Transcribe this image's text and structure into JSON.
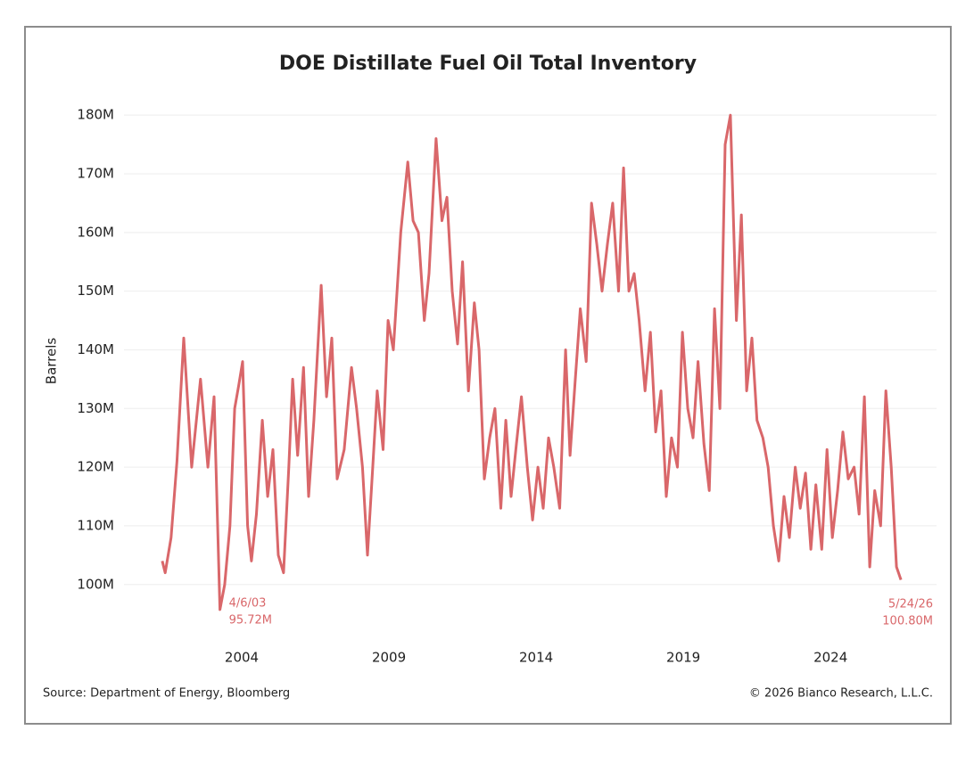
{
  "chart_data": {
    "type": "line",
    "title": "DOE Distillate Fuel Oil Total Inventory",
    "ylabel": "Barrels",
    "source": "Source: Department of Energy, Bloomberg",
    "copyright": "© 2026 Bianco Research, L.L.C.",
    "color": "#d9676a",
    "grid": true,
    "xlim": [
      2000,
      2027.6
    ],
    "xticks": [
      2004,
      2009,
      2014,
      2019,
      2024
    ],
    "ylim": [
      91,
      182
    ],
    "yticks": [
      {
        "value": 100,
        "label": "100M"
      },
      {
        "value": 110,
        "label": "110M"
      },
      {
        "value": 120,
        "label": "120M"
      },
      {
        "value": 130,
        "label": "130M"
      },
      {
        "value": 140,
        "label": "140M"
      },
      {
        "value": 150,
        "label": "150M"
      },
      {
        "value": 160,
        "label": "160M"
      },
      {
        "value": 170,
        "label": "170M"
      },
      {
        "value": 180,
        "label": "180M"
      }
    ],
    "annotations": [
      {
        "date": "4/6/03",
        "label": "95.72M"
      },
      {
        "date": "5/24/26",
        "label": "100.80M"
      }
    ],
    "x": [
      2001.3,
      2001.4,
      2001.6,
      2001.8,
      2002.03,
      2002.3,
      2002.6,
      2002.85,
      2003.06,
      2003.26,
      2003.42,
      2003.6,
      2003.76,
      2003.9,
      2004.03,
      2004.2,
      2004.33,
      2004.5,
      2004.7,
      2004.88,
      2005.06,
      2005.24,
      2005.42,
      2005.6,
      2005.73,
      2005.9,
      2006.1,
      2006.27,
      2006.45,
      2006.7,
      2006.88,
      2007.06,
      2007.24,
      2007.48,
      2007.73,
      2007.9,
      2008.1,
      2008.27,
      2008.45,
      2008.6,
      2008.8,
      2008.97,
      2009.15,
      2009.4,
      2009.64,
      2009.82,
      2010.0,
      2010.2,
      2010.36,
      2010.6,
      2010.8,
      2010.97,
      2011.15,
      2011.33,
      2011.5,
      2011.7,
      2011.9,
      2012.06,
      2012.24,
      2012.42,
      2012.6,
      2012.8,
      2012.97,
      2013.15,
      2013.33,
      2013.5,
      2013.7,
      2013.88,
      2014.06,
      2014.24,
      2014.42,
      2014.6,
      2014.8,
      2015.0,
      2015.15,
      2015.33,
      2015.5,
      2015.7,
      2015.88,
      2016.06,
      2016.24,
      2016.42,
      2016.6,
      2016.8,
      2016.97,
      2017.15,
      2017.33,
      2017.5,
      2017.7,
      2017.88,
      2018.06,
      2018.24,
      2018.42,
      2018.6,
      2018.8,
      2018.97,
      2019.15,
      2019.33,
      2019.5,
      2019.7,
      2019.88,
      2020.06,
      2020.24,
      2020.42,
      2020.6,
      2020.8,
      2020.97,
      2021.15,
      2021.33,
      2021.5,
      2021.7,
      2021.88,
      2022.06,
      2022.24,
      2022.42,
      2022.6,
      2022.8,
      2022.97,
      2023.15,
      2023.33,
      2023.5,
      2023.7,
      2023.88,
      2024.06,
      2024.24,
      2024.42,
      2024.6,
      2024.8,
      2024.97,
      2025.15,
      2025.33,
      2025.5,
      2025.7,
      2025.88,
      2026.06,
      2026.24,
      2026.39
    ],
    "values": [
      104,
      102,
      108,
      121,
      142,
      120,
      135,
      120,
      132,
      95.72,
      100,
      110,
      130,
      134,
      138,
      110,
      104,
      112,
      128,
      115,
      123,
      105,
      102,
      120,
      135,
      122,
      137,
      115,
      128,
      151,
      132,
      142,
      118,
      123,
      137,
      130,
      120,
      105,
      120,
      133,
      123,
      145,
      140,
      160,
      172,
      162,
      160,
      145,
      153,
      176,
      162,
      166,
      150,
      141,
      155,
      133,
      148,
      140,
      118,
      125,
      130,
      113,
      128,
      115,
      124,
      132,
      120,
      111,
      120,
      113,
      125,
      120,
      113,
      140,
      122,
      135,
      147,
      138,
      165,
      158,
      150,
      158,
      165,
      150,
      171,
      150,
      153,
      145,
      133,
      143,
      126,
      133,
      115,
      125,
      120,
      143,
      130,
      125,
      138,
      124,
      116,
      147,
      130,
      175,
      180,
      145,
      163,
      133,
      142,
      128,
      125,
      120,
      110,
      104,
      115,
      108,
      120,
      113,
      119,
      106,
      117,
      106,
      123,
      108,
      116,
      126,
      118,
      120,
      112,
      132,
      103,
      116,
      110,
      133,
      120,
      103,
      100.8
    ]
  }
}
